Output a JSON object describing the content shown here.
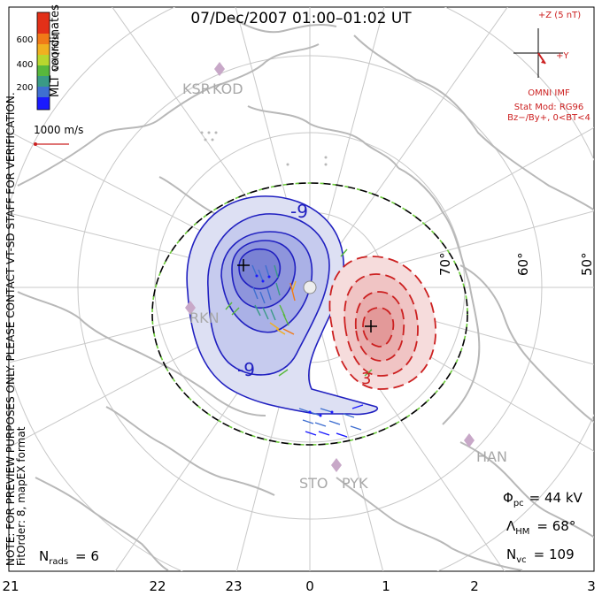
{
  "title": "07/Dec/2007 01:00–01:02 UT",
  "coords_label": "MLT coordinates",
  "colorbar": {
    "label": "Vel [m/s]",
    "ticks": [
      "200",
      "400",
      "600"
    ],
    "colors": [
      "#1a1aff",
      "#3f6fd0",
      "#3a9a86",
      "#58b83c",
      "#b8d62e",
      "#f0b020",
      "#f07a18",
      "#e23018"
    ]
  },
  "ref_vector": "1000 m/s",
  "imf": {
    "z_label": "+Z (5 nT)",
    "y_label": "+Y",
    "source": "OMNI IMF",
    "model": "Stat Mod: RG96",
    "condition": "Bz−/By+, 0<BT<4"
  },
  "contour_labels": {
    "negative": "-9",
    "negative2": "-9",
    "positive": "3"
  },
  "lat_labels": [
    "70°",
    "60°",
    "50°"
  ],
  "stations": [
    "KSR",
    "KOD",
    "RKN",
    "STO",
    "PYK",
    "HAN"
  ],
  "mlt_labels": [
    "21",
    "22",
    "23",
    "0",
    "1",
    "2",
    "3"
  ],
  "stats": {
    "phi_pc_label": "Φ",
    "phi_pc_sub": "pc",
    "phi_pc_value": "= 44 kV",
    "lambda_label": "Λ",
    "lambda_sub": "HM",
    "lambda_value": "= 68°",
    "nvc_label": "N",
    "nvc_sub": "vc",
    "nvc_value": "= 109",
    "nrads_label": "N",
    "nrads_sub": "rads",
    "nrads_value": "= 6"
  },
  "notes": {
    "line1": "NOTE: FOR PREVIEW PURPOSES ONLY. PLEASE CONTACT VT-SD STAFF FOR VERIFICATION.",
    "line2": "FitOrder: 8, mapEX format"
  }
}
